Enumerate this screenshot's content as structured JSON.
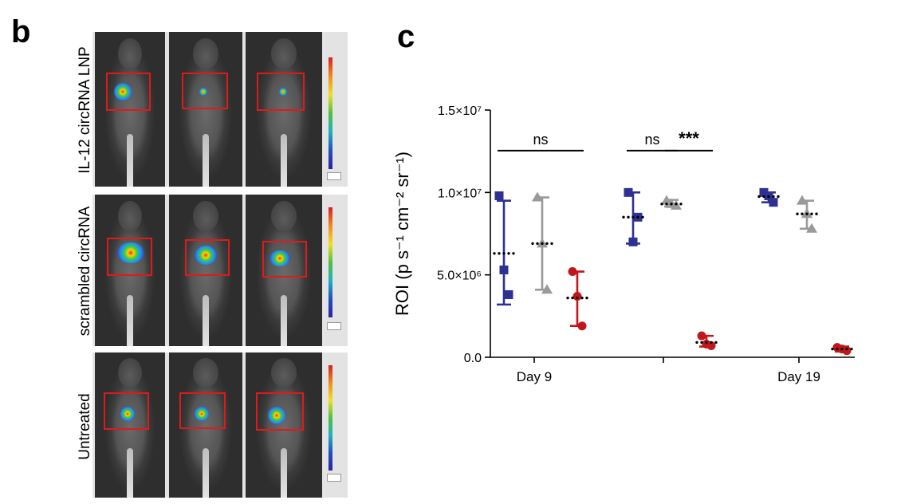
{
  "panels": {
    "b": {
      "letter": "b",
      "rows": [
        {
          "label": "IL-12 circRNA LNP"
        },
        {
          "label": "scrambled circRNA"
        },
        {
          "label": "Untreated"
        }
      ]
    },
    "c": {
      "letter": "c"
    }
  },
  "colors": {
    "blue": "#2e3192",
    "gray": "#9a9a9a",
    "red": "#c1161c",
    "roi_box": "#e01a1a"
  },
  "chart_data": {
    "type": "scatter",
    "ylabel": "ROI (p s⁻¹ cm⁻² sr⁻¹)",
    "ylim": [
      0,
      15000000
    ],
    "yticks": [
      {
        "value": 0,
        "label": "0.0"
      },
      {
        "value": 5000000,
        "label": "5.0×10⁶"
      },
      {
        "value": 10000000,
        "label": "1.0×10⁷"
      },
      {
        "value": 15000000,
        "label": "1.5×10⁷"
      }
    ],
    "groups": [
      {
        "label": "Day 9"
      },
      {
        "label": ""
      },
      {
        "label": "Day 19"
      }
    ],
    "series": [
      {
        "marker": "square",
        "color": "#2e3192",
        "points": [
          [
            9800000,
            5300000,
            3800000
          ],
          [
            10000000,
            7000000,
            8500000
          ],
          [
            10000000,
            9800000,
            9400000
          ]
        ],
        "mean": [
          6300000,
          8500000,
          9750000
        ],
        "err": [
          [
            3200000,
            9500000
          ],
          [
            6900000,
            10000000
          ],
          [
            9400000,
            10000000
          ]
        ]
      },
      {
        "marker": "triangle",
        "color": "#9a9a9a",
        "points": [
          [
            9700000,
            6900000,
            4100000
          ],
          [
            9500000,
            9300000,
            9200000
          ],
          [
            9500000,
            8700000,
            7800000
          ]
        ],
        "mean": [
          6900000,
          9300000,
          8700000
        ],
        "err": [
          [
            4100000,
            9700000
          ],
          [
            9150000,
            9550000
          ],
          [
            7800000,
            9500000
          ]
        ]
      },
      {
        "marker": "circle",
        "color": "#c1161c",
        "points": [
          [
            5200000,
            3700000,
            1900000
          ],
          [
            1300000,
            800000,
            700000
          ],
          [
            600000,
            500000,
            400000
          ]
        ],
        "mean": [
          3600000,
          900000,
          500000
        ],
        "err": [
          [
            1900000,
            5200000
          ],
          [
            650000,
            1300000
          ],
          [
            350000,
            650000
          ]
        ]
      }
    ],
    "annotations": [
      {
        "text": "ns",
        "group": 0,
        "from": 0,
        "to": 2,
        "y": 13700000
      },
      {
        "text": "ns",
        "group": 1,
        "from": 0,
        "to": 1,
        "y": 13700000
      },
      {
        "text": "***",
        "group": 1,
        "from": 1,
        "to": 2,
        "y": 13700000
      }
    ]
  }
}
